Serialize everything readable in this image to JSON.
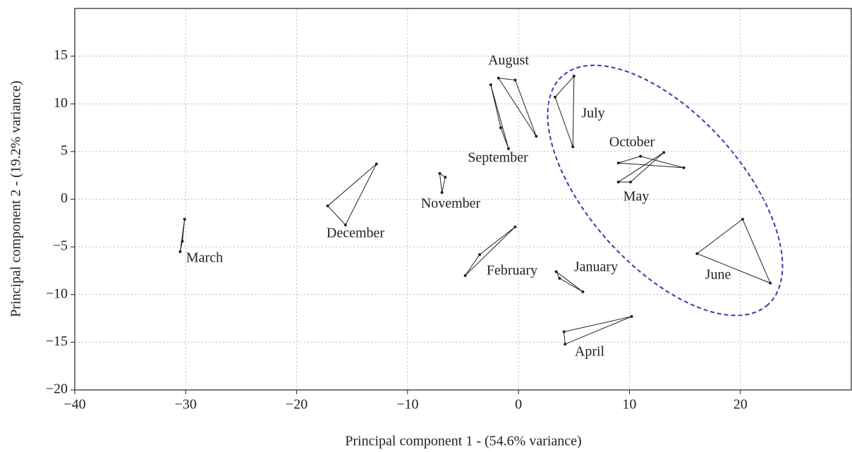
{
  "chart_data": {
    "type": "scatter",
    "xlabel": "Principal component 1 - (54.6% variance)",
    "ylabel": "Principal component 2 - (19.2% variance)",
    "xlim": [
      -40,
      30
    ],
    "ylim": [
      -20,
      20
    ],
    "xticks": [
      {
        "value": -40,
        "label": "−40"
      },
      {
        "value": -30,
        "label": "−30"
      },
      {
        "value": -20,
        "label": "−20"
      },
      {
        "value": -10,
        "label": "−10"
      },
      0,
      10,
      20
    ],
    "yticks": [
      {
        "value": -20,
        "label": "−20"
      },
      {
        "value": -15,
        "label": "−15"
      },
      {
        "value": -10,
        "label": "−10"
      },
      {
        "value": -5,
        "label": "−5"
      },
      0,
      5,
      10,
      15
    ],
    "grid": true,
    "color": "#222222",
    "series": [
      {
        "name": "March",
        "x": [
          -30.1,
          -30.3,
          -30.5
        ],
        "y": [
          -2.1,
          -4.4,
          -5.5
        ]
      },
      {
        "name": "December",
        "x": [
          -12.8,
          -17.2,
          -15.6
        ],
        "y": [
          3.7,
          -0.7,
          -2.7
        ]
      },
      {
        "name": "November",
        "x": [
          -7.1,
          -6.6,
          -6.9
        ],
        "y": [
          2.7,
          2.3,
          0.7
        ]
      },
      {
        "name": "September",
        "x": [
          -2.5,
          -1.6,
          -0.9
        ],
        "y": [
          12.0,
          7.5,
          5.3
        ]
      },
      {
        "name": "August",
        "x": [
          -1.8,
          -0.3,
          1.6
        ],
        "y": [
          12.7,
          12.5,
          6.6
        ]
      },
      {
        "name": "July",
        "x": [
          5.0,
          3.3,
          4.9
        ],
        "y": [
          12.9,
          10.7,
          5.5
        ]
      },
      {
        "name": "October",
        "x": [
          11.0,
          9.0,
          14.9
        ],
        "y": [
          4.5,
          3.8,
          3.3
        ]
      },
      {
        "name": "May",
        "x": [
          13.1,
          10.1,
          9.0
        ],
        "y": [
          4.9,
          1.8,
          1.8
        ]
      },
      {
        "name": "June",
        "x": [
          20.2,
          16.1,
          22.7
        ],
        "y": [
          -2.1,
          -5.7,
          -8.8
        ]
      },
      {
        "name": "February",
        "x": [
          -0.3,
          -3.5,
          -4.8
        ],
        "y": [
          -2.9,
          -5.8,
          -8.0
        ]
      },
      {
        "name": "January",
        "x": [
          3.4,
          3.7,
          5.8
        ],
        "y": [
          -7.6,
          -8.3,
          -9.7
        ]
      },
      {
        "name": "April",
        "x": [
          10.2,
          4.1,
          4.2
        ],
        "y": [
          -12.3,
          -13.9,
          -15.2
        ]
      }
    ]
  }
}
